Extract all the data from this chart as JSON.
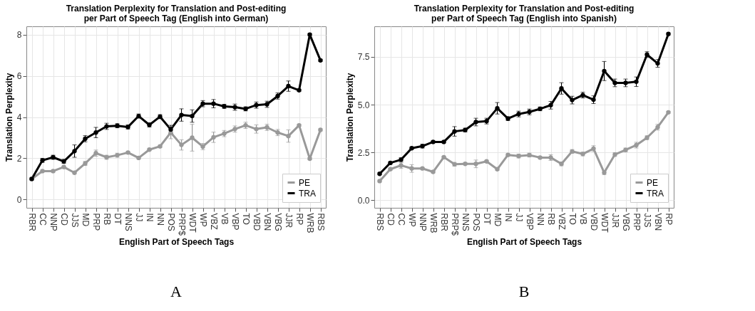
{
  "chart_data": [
    {
      "type": "line",
      "title": "Translation Perplexity for Translation and Post-editing\nper Part of Speech Tag (English into German)",
      "xlabel": "English Part of Speech Tags",
      "ylabel": "Translation Perplexity",
      "categories": [
        "RBR",
        "CC",
        "NNP",
        "CD",
        "JJS",
        "MD",
        "PRP",
        "RB",
        "DT",
        "NNS",
        "JJ",
        "IN",
        "NN",
        "POS",
        "PRP$",
        "WDT",
        "WP",
        "VBZ",
        "VB",
        "VBP",
        "TO",
        "VBD",
        "VBN",
        "VBG",
        "JJR",
        "RP",
        "WRB",
        "RBS"
      ],
      "series": [
        {
          "name": "PE",
          "color": "#999999",
          "values": [
            1.0,
            1.38,
            1.38,
            1.58,
            1.3,
            1.75,
            2.25,
            2.05,
            2.15,
            2.28,
            2.02,
            2.42,
            2.58,
            3.25,
            2.65,
            3.0,
            2.57,
            3.02,
            3.2,
            3.42,
            3.6,
            3.42,
            3.5,
            3.25,
            3.08,
            3.6,
            1.98,
            3.38
          ],
          "errors": [
            0.05,
            0.05,
            0.05,
            0.05,
            0.05,
            0.1,
            0.15,
            0.1,
            0.1,
            0.05,
            0.05,
            0.05,
            0.05,
            0.3,
            0.25,
            0.65,
            0.15,
            0.25,
            0.15,
            0.15,
            0.15,
            0.2,
            0.15,
            0.15,
            0.3,
            0.05,
            0.05,
            0.05
          ]
        },
        {
          "name": "TRA",
          "color": "#000000",
          "values": [
            1.0,
            1.9,
            2.05,
            1.85,
            2.35,
            2.95,
            3.25,
            3.55,
            3.58,
            3.52,
            4.05,
            3.62,
            4.02,
            3.4,
            4.1,
            4.05,
            4.65,
            4.65,
            4.52,
            4.48,
            4.4,
            4.58,
            4.62,
            5.02,
            5.5,
            5.3,
            8.0,
            6.75
          ],
          "errors": [
            0.05,
            0.1,
            0.1,
            0.1,
            0.3,
            0.15,
            0.25,
            0.15,
            0.1,
            0.1,
            0.1,
            0.1,
            0.1,
            0.2,
            0.3,
            0.3,
            0.15,
            0.2,
            0.1,
            0.15,
            0.1,
            0.15,
            0.15,
            0.15,
            0.25,
            0.05,
            0.05,
            0.05
          ]
        }
      ],
      "ylim": [
        -0.4,
        8.4
      ],
      "yticks": [
        0,
        2,
        4,
        6,
        8
      ],
      "grid": true,
      "legend": "bottom right",
      "marker": "circle",
      "line_style": "solid",
      "annotations": [
        "A"
      ]
    },
    {
      "type": "line",
      "title": "Translation Perplexity for Translation and Post-editing\nper Part of Speech Tag (English into Spanish)",
      "xlabel": "English Part of Speech Tags",
      "ylabel": "Translation Perplexity",
      "categories": [
        "RBS",
        "CD",
        "CC",
        "WP",
        "NNP",
        "WRB",
        "RBR",
        "PRP$",
        "NNS",
        "POS",
        "DT",
        "MD",
        "IN",
        "JJ",
        "VBP",
        "NN",
        "RB",
        "VBZ",
        "TO",
        "VB",
        "VBD",
        "WDT",
        "JJR",
        "VBG",
        "PRP",
        "JJS",
        "VBN",
        "RP"
      ],
      "series": [
        {
          "name": "PE",
          "color": "#999999",
          "values": [
            1.0,
            1.62,
            1.82,
            1.66,
            1.66,
            1.48,
            2.25,
            1.88,
            1.9,
            1.9,
            2.03,
            1.62,
            2.37,
            2.31,
            2.36,
            2.23,
            2.23,
            1.9,
            2.55,
            2.42,
            2.7,
            1.44,
            2.39,
            2.63,
            2.88,
            3.27,
            3.82,
            4.6
          ],
          "errors": [
            0.05,
            0.05,
            0.15,
            0.2,
            0.05,
            0.05,
            0.05,
            0.1,
            0.05,
            0.2,
            0.05,
            0.05,
            0.05,
            0.1,
            0.1,
            0.05,
            0.15,
            0.1,
            0.1,
            0.1,
            0.15,
            0.1,
            0.1,
            0.1,
            0.15,
            0.1,
            0.15,
            0.05
          ]
        },
        {
          "name": "TRA",
          "color": "#000000",
          "values": [
            1.38,
            1.95,
            2.12,
            2.72,
            2.83,
            3.05,
            3.05,
            3.6,
            3.67,
            4.09,
            4.14,
            4.81,
            4.27,
            4.51,
            4.62,
            4.78,
            4.97,
            5.85,
            5.24,
            5.5,
            5.26,
            6.76,
            6.14,
            6.14,
            6.2,
            7.62,
            7.16,
            8.7
          ],
          "errors": [
            0.05,
            0.05,
            0.1,
            0.05,
            0.1,
            0.05,
            0.05,
            0.25,
            0.1,
            0.2,
            0.15,
            0.3,
            0.1,
            0.15,
            0.15,
            0.1,
            0.2,
            0.3,
            0.2,
            0.15,
            0.2,
            0.5,
            0.2,
            0.2,
            0.25,
            0.15,
            0.2,
            0.05
          ]
        }
      ],
      "ylim": [
        -0.4,
        9.1
      ],
      "yticks": [
        {
          "value": 0,
          "label": "0.0"
        },
        {
          "value": 2.5,
          "label": "2.5"
        },
        {
          "value": 5,
          "label": "5.0"
        },
        {
          "value": 7.5,
          "label": "7.5"
        }
      ],
      "grid": true,
      "legend": "bottom right",
      "marker": "circle",
      "line_style": "solid",
      "annotations": [
        "B"
      ]
    }
  ]
}
